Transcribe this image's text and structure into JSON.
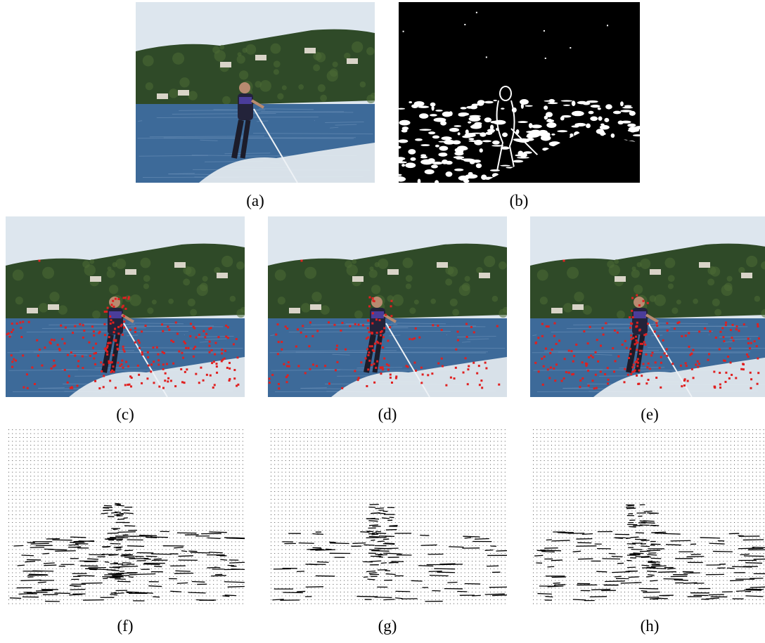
{
  "figure": {
    "captions": {
      "a": "(a)",
      "b": "(b)",
      "c": "(c)",
      "d": "(d)",
      "e": "(e)",
      "f": "(f)",
      "g": "(g)",
      "h": "(h)"
    },
    "colors": {
      "sky": "#dde6ee",
      "forest": "#2f4a28",
      "water": "#3d6a99",
      "spray": "#e9eef2",
      "marker": "#e02020",
      "field": "#000000"
    }
  }
}
